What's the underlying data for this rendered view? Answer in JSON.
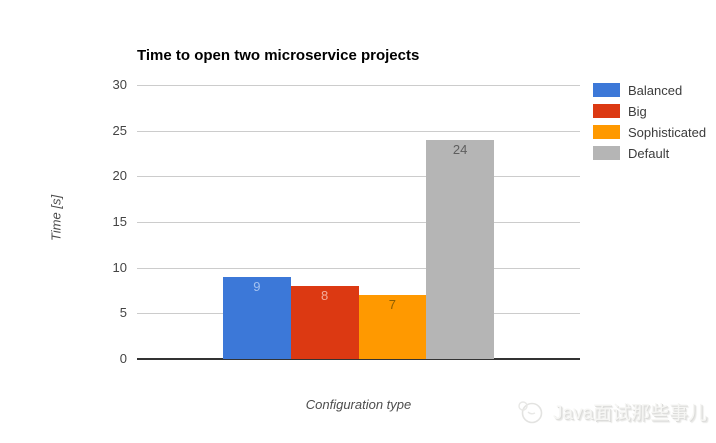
{
  "title": "Time to open two microservice projects",
  "chart_data": {
    "type": "bar",
    "title": "Time to open two microservice projects",
    "xlabel": "Configuration type",
    "ylabel": "Time [s]",
    "ylim": [
      0,
      30
    ],
    "yticks": [
      0,
      5,
      10,
      15,
      20,
      25,
      30
    ],
    "grid": true,
    "gridline_color": "#cccccc",
    "baseline_color": "#333333",
    "legend_position": "right",
    "categories": [
      ""
    ],
    "series": [
      {
        "name": "Balanced",
        "value": 9,
        "color": "#3c78d8",
        "annotation_color": "#a3c1f0"
      },
      {
        "name": "Big",
        "value": 8,
        "color": "#dc3912",
        "annotation_color": "#f3ab9a"
      },
      {
        "name": "Sophisticated",
        "value": 7,
        "color": "#ff9900",
        "annotation_color": "#8f5f00"
      },
      {
        "name": "Default",
        "value": 24,
        "color": "#b5b5b5",
        "annotation_color": "#5e5e5e"
      }
    ]
  },
  "watermark": {
    "text": "Java面试那些事儿",
    "logo": "doodle-face-icon",
    "color": "#e3e3e1"
  }
}
